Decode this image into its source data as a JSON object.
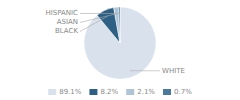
{
  "chart_data": {
    "type": "pie",
    "categories": [
      "WHITE",
      "BLACK",
      "ASIAN",
      "HISPANIC"
    ],
    "values": [
      89.1,
      8.2,
      2.1,
      0.7
    ],
    "value_labels": [
      "89.1%",
      "8.2%",
      "2.1%",
      "0.7%"
    ],
    "colors": [
      "#d9e2ec",
      "#2e6085",
      "#b0c4d8",
      "#4a7a9b"
    ],
    "legend": "bottom"
  }
}
